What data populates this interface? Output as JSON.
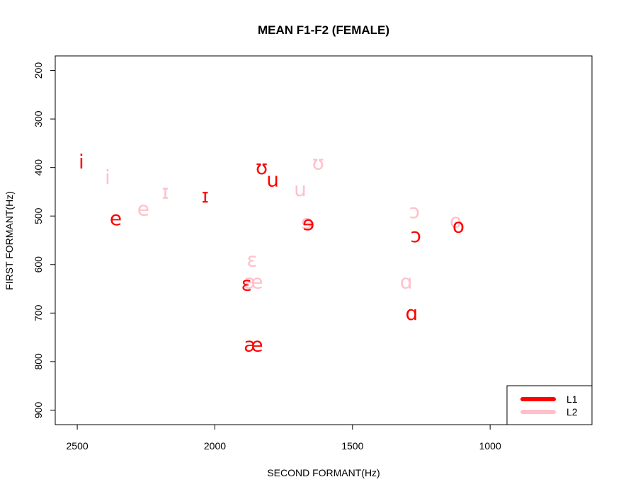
{
  "chart_data": {
    "type": "scatter",
    "title": "MEAN F1-F2 (FEMALE)",
    "xlabel": "SECOND FORMANT(Hz)",
    "ylabel": "FIRST FORMANT(Hz)",
    "xlim": [
      2580,
      630
    ],
    "ylim": [
      930,
      170
    ],
    "xticks": [
      2500,
      2000,
      1500,
      1000
    ],
    "yticks": [
      200,
      300,
      400,
      500,
      600,
      700,
      800,
      900
    ],
    "legend_position": "bottom-right",
    "series": [
      {
        "name": "L1",
        "color": "#ff0000",
        "points": [
          {
            "label": "i",
            "x": 2485,
            "y": 388
          },
          {
            "label": "e",
            "x": 2360,
            "y": 505
          },
          {
            "label": "ɪ",
            "x": 2035,
            "y": 458
          },
          {
            "label": "ʊ",
            "x": 1830,
            "y": 400
          },
          {
            "label": "u",
            "x": 1790,
            "y": 425
          },
          {
            "label": "ɘ",
            "x": 1660,
            "y": 515
          },
          {
            "label": "ɛ",
            "x": 1885,
            "y": 640
          },
          {
            "label": "æ",
            "x": 1860,
            "y": 765
          },
          {
            "label": "ɔ",
            "x": 1270,
            "y": 540
          },
          {
            "label": "o",
            "x": 1115,
            "y": 520
          },
          {
            "label": "ɑ",
            "x": 1285,
            "y": 700
          }
        ]
      },
      {
        "name": "L2",
        "color": "#ffc0cb",
        "points": [
          {
            "label": "i",
            "x": 2390,
            "y": 420
          },
          {
            "label": "e",
            "x": 2260,
            "y": 485
          },
          {
            "label": "ɪ",
            "x": 2180,
            "y": 450
          },
          {
            "label": "ʊ",
            "x": 1625,
            "y": 390
          },
          {
            "label": "u",
            "x": 1690,
            "y": 445
          },
          {
            "label": "ɘ",
            "x": 1665,
            "y": 512
          },
          {
            "label": "ɛ",
            "x": 1865,
            "y": 590
          },
          {
            "label": "æ",
            "x": 1860,
            "y": 635
          },
          {
            "label": "ɔ",
            "x": 1275,
            "y": 490
          },
          {
            "label": "o",
            "x": 1125,
            "y": 510
          },
          {
            "label": "ɑ",
            "x": 1305,
            "y": 635
          }
        ]
      }
    ]
  }
}
